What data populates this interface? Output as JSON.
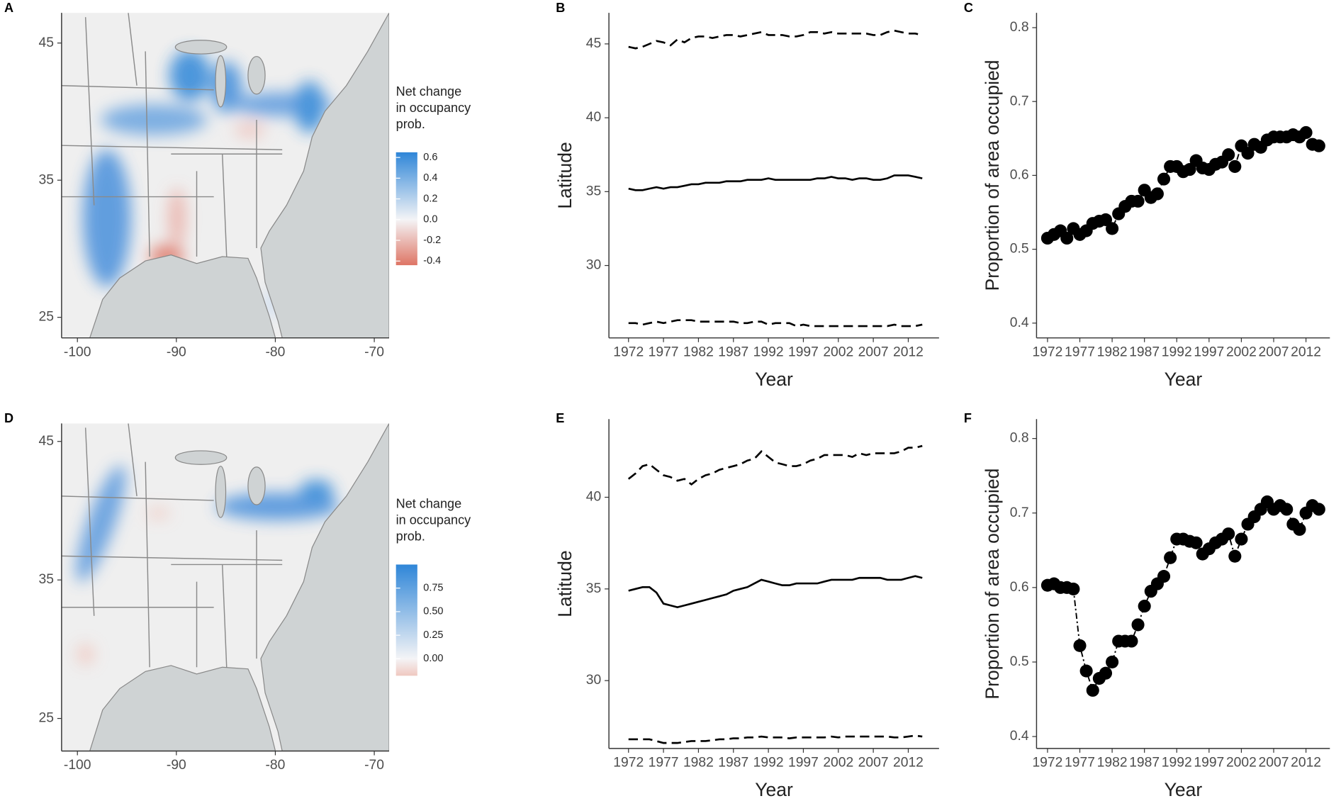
{
  "chart_data": [
    {
      "type": "map",
      "panel": "A",
      "xlim": [
        -101.6,
        -68.5
      ],
      "ylim": [
        23.5,
        47.2
      ],
      "xticks": [
        -100,
        -90,
        -80,
        -70
      ],
      "yticks": [
        25,
        35,
        45
      ],
      "legend_title": [
        "Net change",
        "in occupancy",
        "prob."
      ],
      "clim": [
        -0.44,
        0.65
      ],
      "cticks": [
        0.6,
        0.4,
        0.2,
        {
          "value": 0,
          "label": "0.0"
        },
        -0.2,
        -0.4
      ],
      "low_color": "#de7565",
      "mid_color": "#f4f4f6",
      "high_color": "#2f86d8"
    },
    {
      "type": "line",
      "panel": "B",
      "xlabel": "Year",
      "ylabel": "Latitude",
      "xlim": [
        1969.2,
        2016.4
      ],
      "ylim": [
        25.1,
        47.1
      ],
      "xticks": [
        1972,
        1977,
        1982,
        1987,
        1992,
        1997,
        2002,
        2007,
        2012
      ],
      "yticks": [
        30,
        35,
        40,
        45
      ],
      "x": [
        1972,
        1973,
        1974,
        1975,
        1976,
        1977,
        1978,
        1979,
        1980,
        1981,
        1982,
        1983,
        1984,
        1985,
        1986,
        1987,
        1988,
        1989,
        1990,
        1991,
        1992,
        1993,
        1994,
        1995,
        1996,
        1997,
        1998,
        1999,
        2000,
        2001,
        2002,
        2003,
        2004,
        2005,
        2006,
        2007,
        2008,
        2009,
        2010,
        2011,
        2012,
        2013,
        2014
      ],
      "series": [
        {
          "color": "#000000",
          "linestyle": "dashed",
          "values": [
            44.8,
            44.7,
            44.8,
            45,
            45.2,
            45.1,
            44.9,
            45.3,
            45.1,
            45.4,
            45.5,
            45.5,
            45.4,
            45.5,
            45.6,
            45.6,
            45.5,
            45.6,
            45.7,
            45.8,
            45.6,
            45.6,
            45.6,
            45.5,
            45.5,
            45.6,
            45.8,
            45.8,
            45.7,
            45.8,
            45.7,
            45.7,
            45.7,
            45.7,
            45.7,
            45.6,
            45.6,
            45.8,
            45.9,
            45.8,
            45.7,
            45.7,
            45.6
          ]
        },
        {
          "color": "#000000",
          "linestyle": "solid",
          "values": [
            35.2,
            35.1,
            35.1,
            35.2,
            35.3,
            35.2,
            35.3,
            35.3,
            35.4,
            35.5,
            35.5,
            35.6,
            35.6,
            35.6,
            35.7,
            35.7,
            35.7,
            35.8,
            35.8,
            35.8,
            35.9,
            35.8,
            35.8,
            35.8,
            35.8,
            35.8,
            35.8,
            35.9,
            35.9,
            36,
            35.9,
            35.9,
            35.8,
            35.9,
            35.9,
            35.8,
            35.8,
            35.9,
            36.1,
            36.1,
            36.1,
            36.0,
            35.9
          ]
        },
        {
          "color": "#000000",
          "linestyle": "dashed",
          "values": [
            26.1,
            26.1,
            26.0,
            26.1,
            26.2,
            26.1,
            26.2,
            26.3,
            26.3,
            26.3,
            26.2,
            26.2,
            26.2,
            26.2,
            26.2,
            26.2,
            26.1,
            26.1,
            26.2,
            26.2,
            26.0,
            26.1,
            26.1,
            26.1,
            25.9,
            26.0,
            25.9,
            25.9,
            25.9,
            25.9,
            25.9,
            25.9,
            25.9,
            25.9,
            25.9,
            25.9,
            25.9,
            25.9,
            26.0,
            25.9,
            25.9,
            25.9,
            26.0
          ]
        }
      ]
    },
    {
      "type": "points",
      "panel": "C",
      "xlabel": "Year",
      "ylabel": "Proportion of area occupied",
      "xlim": [
        1970.3,
        2015.7
      ],
      "ylim": [
        0.38,
        0.82
      ],
      "xticks": [
        1972,
        1977,
        1982,
        1987,
        1992,
        1997,
        2002,
        2007,
        2012
      ],
      "yticks": [
        0.4,
        0.5,
        0.6,
        0.7,
        0.8
      ],
      "x": [
        1972,
        1973,
        1974,
        1975,
        1976,
        1977,
        1978,
        1979,
        1980,
        1981,
        1982,
        1983,
        1984,
        1985,
        1986,
        1987,
        1988,
        1989,
        1990,
        1991,
        1992,
        1993,
        1994,
        1995,
        1996,
        1997,
        1998,
        1999,
        2000,
        2001,
        2002,
        2003,
        2004,
        2005,
        2006,
        2007,
        2008,
        2009,
        2010,
        2011,
        2012,
        2013,
        2014
      ],
      "series": [
        {
          "color": "#000000",
          "values": [
            0.515,
            0.52,
            0.525,
            0.515,
            0.528,
            0.52,
            0.525,
            0.535,
            0.538,
            0.54,
            0.528,
            0.548,
            0.558,
            0.565,
            0.565,
            0.58,
            0.57,
            0.575,
            0.595,
            0.612,
            0.612,
            0.605,
            0.608,
            0.62,
            0.61,
            0.608,
            0.615,
            0.618,
            0.628,
            0.612,
            0.64,
            0.63,
            0.642,
            0.638,
            0.648,
            0.652,
            0.652,
            0.652,
            0.655,
            0.652,
            0.658,
            0.642,
            0.64
          ]
        }
      ]
    },
    {
      "type": "map",
      "panel": "D",
      "xlim": [
        -101.6,
        -68.5
      ],
      "ylim": [
        22.65,
        46.3
      ],
      "xticks": [
        -100,
        -90,
        -80,
        -70
      ],
      "yticks": [
        25,
        35,
        45
      ],
      "legend_title": [
        "Net change",
        "in occupancy",
        "prob."
      ],
      "clim": [
        -0.18,
        1.0
      ],
      "cticks": [
        0.75,
        {
          "value": 0.5,
          "label": "0.50"
        },
        0.25,
        {
          "value": 0,
          "label": "0.00"
        }
      ],
      "low_color": "#f0c8c0",
      "mid_color": "#f4f4f6",
      "high_color": "#2f86d8"
    },
    {
      "type": "line",
      "panel": "E",
      "xlabel": "Year",
      "ylabel": "Latitude",
      "xlim": [
        1969.2,
        2016.4
      ],
      "ylim": [
        26.3,
        44.26
      ],
      "xticks": [
        1972,
        1977,
        1982,
        1987,
        1992,
        1997,
        2002,
        2007,
        2012
      ],
      "yticks": [
        30,
        35,
        40
      ],
      "x": [
        1972,
        1973,
        1974,
        1975,
        1976,
        1977,
        1978,
        1979,
        1980,
        1981,
        1982,
        1983,
        1984,
        1985,
        1986,
        1987,
        1988,
        1989,
        1990,
        1991,
        1992,
        1993,
        1994,
        1995,
        1996,
        1997,
        1998,
        1999,
        2000,
        2001,
        2002,
        2003,
        2004,
        2005,
        2006,
        2007,
        2008,
        2009,
        2010,
        2011,
        2012,
        2013,
        2014
      ],
      "series": [
        {
          "color": "#000000",
          "linestyle": "dashed",
          "values": [
            41,
            41.3,
            41.7,
            41.8,
            41.5,
            41.2,
            41.1,
            40.9,
            41,
            40.7,
            41,
            41.2,
            41.3,
            41.5,
            41.6,
            41.7,
            41.8,
            42,
            42.1,
            42.5,
            42.2,
            41.9,
            41.8,
            41.7,
            41.7,
            41.8,
            42.0,
            42.1,
            42.3,
            42.3,
            42.3,
            42.3,
            42.2,
            42.4,
            42.3,
            42.4,
            42.4,
            42.4,
            42.4,
            42.5,
            42.7,
            42.7,
            42.8
          ]
        },
        {
          "color": "#000000",
          "linestyle": "solid",
          "values": [
            34.9,
            35,
            35.1,
            35.1,
            34.8,
            34.2,
            34.1,
            34.0,
            34.1,
            34.2,
            34.3,
            34.4,
            34.5,
            34.6,
            34.7,
            34.9,
            35.0,
            35.1,
            35.3,
            35.5,
            35.4,
            35.3,
            35.2,
            35.2,
            35.3,
            35.3,
            35.3,
            35.3,
            35.4,
            35.5,
            35.5,
            35.5,
            35.5,
            35.6,
            35.6,
            35.6,
            35.6,
            35.5,
            35.5,
            35.5,
            35.6,
            35.7,
            35.6
          ]
        },
        {
          "color": "#000000",
          "linestyle": "dashed",
          "values": [
            26.8,
            26.8,
            26.8,
            26.8,
            26.7,
            26.6,
            26.6,
            26.6,
            26.65,
            26.7,
            26.7,
            26.7,
            26.75,
            26.8,
            26.8,
            26.85,
            26.85,
            26.9,
            26.9,
            26.95,
            26.9,
            26.9,
            26.9,
            26.85,
            26.9,
            26.9,
            26.9,
            26.9,
            26.9,
            26.95,
            26.9,
            26.95,
            26.95,
            26.95,
            26.95,
            26.95,
            26.95,
            26.95,
            26.9,
            26.9,
            26.95,
            27.0,
            26.95
          ]
        }
      ]
    },
    {
      "type": "points",
      "panel": "F",
      "xlabel": "Year",
      "ylabel": "Proportion of area occupied",
      "xlim": [
        1970.3,
        2015.7
      ],
      "ylim": [
        0.384,
        0.826
      ],
      "xticks": [
        1972,
        1977,
        1982,
        1987,
        1992,
        1997,
        2002,
        2007,
        2012
      ],
      "yticks": [
        0.4,
        0.5,
        0.6,
        0.7,
        0.8
      ],
      "x": [
        1972,
        1973,
        1974,
        1975,
        1976,
        1977,
        1978,
        1979,
        1980,
        1981,
        1982,
        1983,
        1984,
        1985,
        1986,
        1987,
        1988,
        1989,
        1990,
        1991,
        1992,
        1993,
        1994,
        1995,
        1996,
        1997,
        1998,
        1999,
        2000,
        2001,
        2002,
        2003,
        2004,
        2005,
        2006,
        2007,
        2008,
        2009,
        2010,
        2011,
        2012,
        2013,
        2014
      ],
      "series": [
        {
          "color": "#000000",
          "values": [
            0.603,
            0.605,
            0.6,
            0.6,
            0.598,
            0.522,
            0.488,
            0.462,
            0.478,
            0.485,
            0.5,
            0.528,
            0.528,
            0.528,
            0.55,
            0.575,
            0.595,
            0.605,
            0.615,
            0.64,
            0.665,
            0.665,
            0.662,
            0.66,
            0.645,
            0.652,
            0.66,
            0.665,
            0.672,
            0.642,
            0.665,
            0.685,
            0.695,
            0.705,
            0.715,
            0.705,
            0.71,
            0.705,
            0.685,
            0.678,
            0.7,
            0.71,
            0.705
          ]
        }
      ]
    }
  ]
}
